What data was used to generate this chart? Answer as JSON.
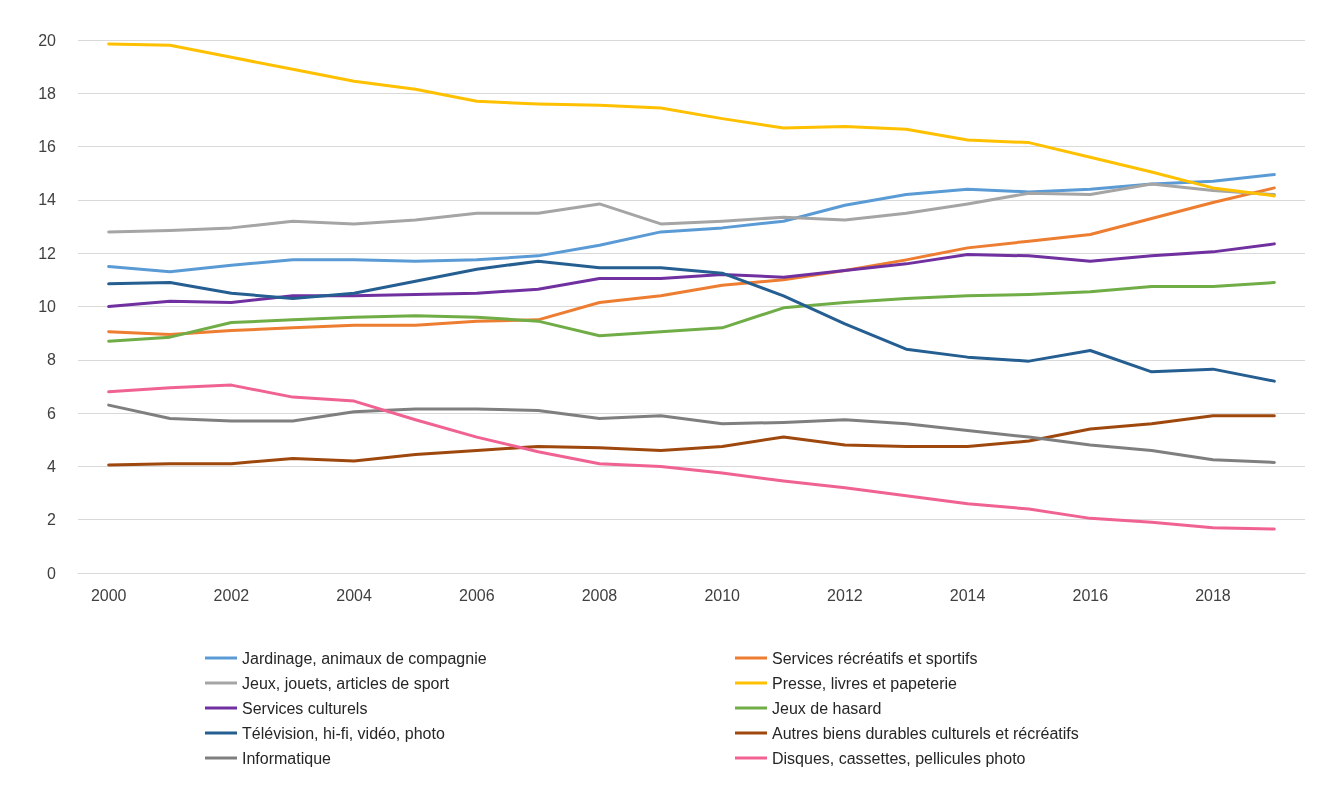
{
  "chart_data": {
    "type": "line",
    "categories": [
      "2000",
      null,
      "2002",
      null,
      "2004",
      null,
      "2006",
      null,
      "2008",
      null,
      "2010",
      null,
      "2012",
      null,
      "2014",
      null,
      "2016",
      null,
      "2018",
      null
    ],
    "ylim": [
      0,
      20
    ],
    "yticks": [
      0,
      2,
      4,
      6,
      8,
      10,
      12,
      14,
      16,
      18,
      20
    ],
    "grid": "y",
    "legend": "bottom",
    "marker": "none",
    "line_style": "solid",
    "series": [
      {
        "name": "Jardinage, animaux de compagnie",
        "color": "#5b9bd5",
        "values": [
          11.5,
          11.3,
          11.55,
          11.75,
          11.75,
          11.7,
          11.75,
          11.9,
          12.3,
          12.8,
          12.95,
          13.2,
          13.8,
          14.2,
          14.4,
          14.3,
          14.4,
          14.6,
          14.7,
          14.95
        ]
      },
      {
        "name": "Services récréatifs et sportifs",
        "color": "#ed7d31",
        "values": [
          9.05,
          8.95,
          9.1,
          9.2,
          9.3,
          9.3,
          9.45,
          9.5,
          10.15,
          10.4,
          10.8,
          11.0,
          11.35,
          11.75,
          12.2,
          12.45,
          12.7,
          13.3,
          13.9,
          14.45
        ]
      },
      {
        "name": "Jeux, jouets, articles de sport",
        "color": "#a5a5a5",
        "values": [
          12.8,
          12.85,
          12.95,
          13.2,
          13.1,
          13.25,
          13.5,
          13.5,
          13.85,
          13.1,
          13.2,
          13.35,
          13.25,
          13.5,
          13.85,
          14.25,
          14.2,
          14.6,
          14.35,
          14.2
        ]
      },
      {
        "name": "Presse, livres et papeterie",
        "color": "#ffc000",
        "values": [
          19.85,
          19.8,
          19.35,
          18.9,
          18.45,
          18.15,
          17.7,
          17.6,
          17.55,
          17.45,
          17.05,
          16.7,
          16.75,
          16.65,
          16.25,
          16.15,
          15.6,
          15.05,
          14.45,
          14.15
        ]
      },
      {
        "name": "Services culturels",
        "color": "#7030a0",
        "values": [
          10.0,
          10.2,
          10.15,
          10.4,
          10.4,
          10.45,
          10.5,
          10.65,
          11.05,
          11.05,
          11.2,
          11.1,
          11.35,
          11.6,
          11.95,
          11.9,
          11.7,
          11.9,
          12.05,
          12.35
        ]
      },
      {
        "name": "Jeux de hasard",
        "color": "#70ad47",
        "values": [
          8.7,
          8.85,
          9.4,
          9.5,
          9.6,
          9.65,
          9.6,
          9.45,
          8.9,
          9.05,
          9.2,
          9.95,
          10.15,
          10.3,
          10.4,
          10.45,
          10.55,
          10.75,
          10.75,
          10.9
        ]
      },
      {
        "name": "Télévision, hi-fi, vidéo, photo",
        "color": "#255e91",
        "values": [
          10.85,
          10.9,
          10.5,
          10.3,
          10.5,
          10.95,
          11.4,
          11.7,
          11.45,
          11.45,
          11.25,
          10.4,
          9.35,
          8.4,
          8.1,
          7.95,
          8.35,
          7.55,
          7.65,
          7.2
        ]
      },
      {
        "name": "Autres biens durables culturels et récréatifs",
        "color": "#9e480e",
        "values": [
          4.05,
          4.1,
          4.1,
          4.3,
          4.2,
          4.45,
          4.6,
          4.75,
          4.7,
          4.6,
          4.75,
          5.1,
          4.8,
          4.75,
          4.75,
          4.95,
          5.4,
          5.6,
          5.9,
          5.9
        ]
      },
      {
        "name": "Informatique",
        "color": "#7f7f7f",
        "values": [
          6.3,
          5.8,
          5.7,
          5.7,
          6.05,
          6.15,
          6.15,
          6.1,
          5.8,
          5.9,
          5.6,
          5.65,
          5.75,
          5.6,
          5.35,
          5.1,
          4.8,
          4.6,
          4.25,
          4.15
        ]
      },
      {
        "name": "Disques, cassettes, pellicules photo",
        "color": "#f06292",
        "values": [
          6.8,
          6.95,
          7.05,
          6.6,
          6.45,
          5.75,
          5.1,
          4.55,
          4.1,
          4.0,
          3.75,
          3.45,
          3.2,
          2.9,
          2.6,
          2.4,
          2.05,
          1.9,
          1.7,
          1.65
        ]
      }
    ]
  }
}
